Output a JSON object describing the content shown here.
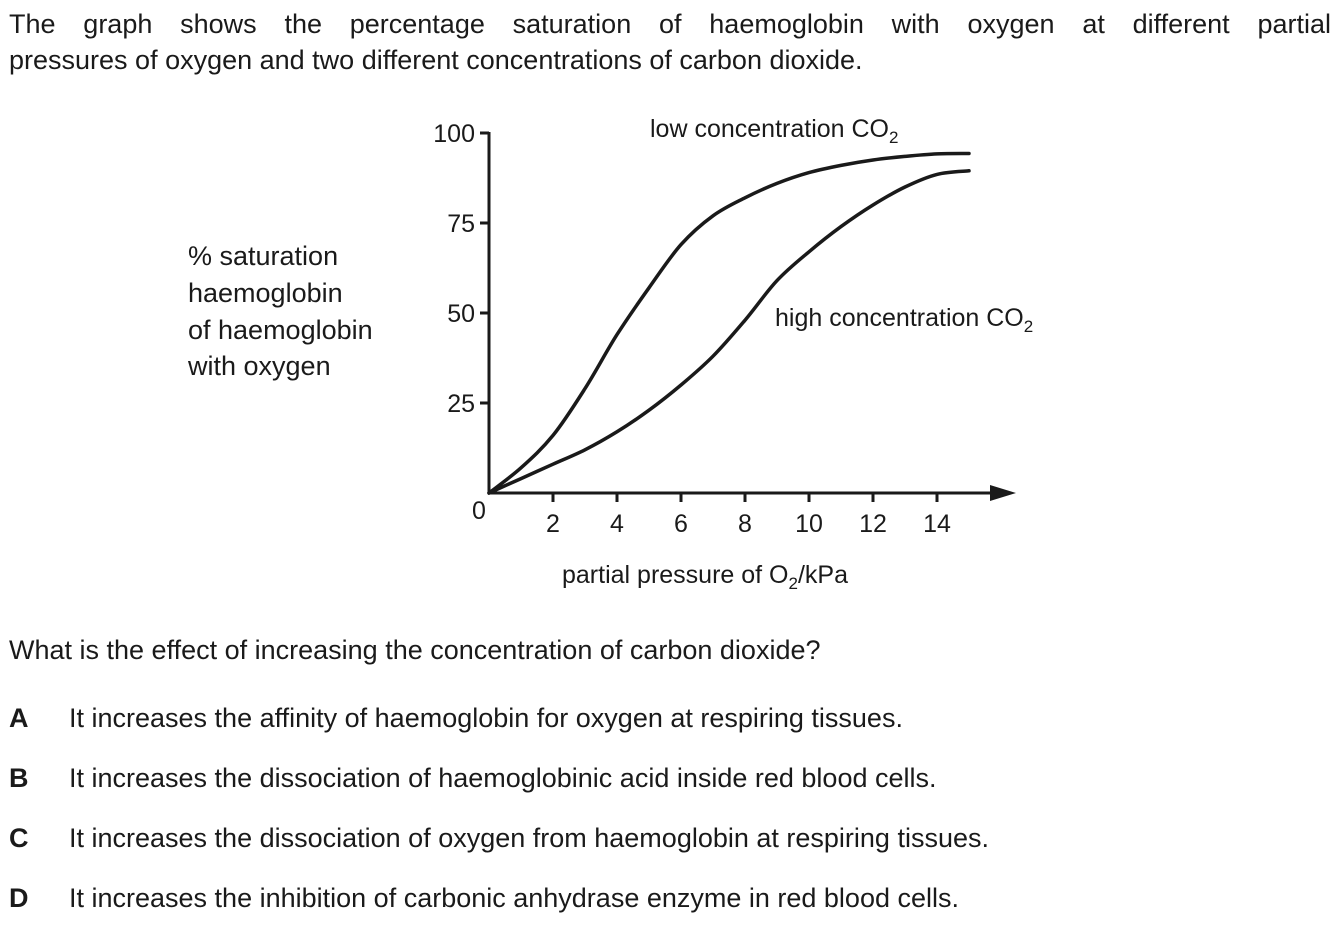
{
  "intro": {
    "line1": "The graph shows the percentage saturation of haemoglobin with oxygen at different partial",
    "line2": "pressures of oxygen and two different concentrations of carbon dioxide."
  },
  "chart_data": {
    "type": "line",
    "ylabel_lines": [
      "% saturation",
      "haemoglobin",
      "of haemoglobin",
      "with oxygen"
    ],
    "xlabel": {
      "pre": "partial pressure of O",
      "sub": "2",
      "post": "/kPa"
    },
    "origin_label": "0",
    "xticks": [
      2,
      4,
      6,
      8,
      10,
      12,
      14
    ],
    "yticks": [
      25,
      50,
      75,
      100
    ],
    "xlim": [
      0,
      16
    ],
    "ylim": [
      0,
      100
    ],
    "series": [
      {
        "name": "low concentration CO2",
        "label": {
          "pre": "low concentration CO",
          "sub": "2"
        },
        "x": [
          0,
          1,
          2,
          3,
          4,
          5,
          6,
          7,
          8,
          9,
          10,
          11,
          12,
          13,
          14,
          15
        ],
        "y": [
          0,
          7,
          16,
          29,
          44,
          57,
          69,
          77,
          82,
          86,
          89,
          91,
          92.5,
          93.5,
          94.2,
          94.3
        ]
      },
      {
        "name": "high concentration CO2",
        "label": {
          "pre": "high concentration CO",
          "sub": "2"
        },
        "x": [
          0,
          1,
          2,
          3,
          4,
          5,
          6,
          7,
          8,
          9,
          10,
          11,
          12,
          13,
          14,
          15
        ],
        "y": [
          0,
          4,
          8,
          12,
          17,
          23,
          30,
          38,
          48,
          59,
          67,
          74,
          80,
          85,
          88.5,
          89.5
        ]
      }
    ]
  },
  "question": "What is the effect of increasing the concentration of carbon dioxide?",
  "options": [
    {
      "letter": "A",
      "text": "It increases the affinity of haemoglobin for oxygen at respiring tissues."
    },
    {
      "letter": "B",
      "text": "It increases the dissociation of haemoglobinic acid inside red blood cells."
    },
    {
      "letter": "C",
      "text": "It increases the dissociation of oxygen from haemoglobin at respiring tissues."
    },
    {
      "letter": "D",
      "text": "It increases the inhibition of carbonic anhydrase enzyme in red blood cells."
    }
  ]
}
